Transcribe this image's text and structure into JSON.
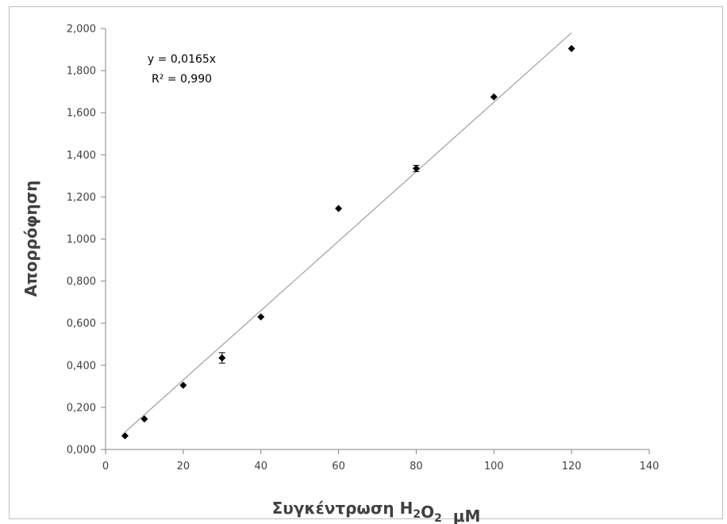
{
  "chart_data": {
    "type": "scatter",
    "xlabel": "Συγκέντρωση H2O2  μM",
    "ylabel": "Απορρόφηση",
    "xlim": [
      0,
      140
    ],
    "ylim": [
      0,
      2
    ],
    "x_ticks": [
      "0",
      "20",
      "40",
      "60",
      "80",
      "100",
      "120",
      "140"
    ],
    "y_ticks": [
      "0,000",
      "0,200",
      "0,400",
      "0,600",
      "0,800",
      "1,000",
      "1,200",
      "1,400",
      "1,600",
      "1,800",
      "2,000"
    ],
    "grid": false,
    "series": [
      {
        "x": [
          5,
          10,
          20,
          30,
          40,
          60,
          80,
          100,
          120
        ],
        "y": [
          0.065,
          0.145,
          0.305,
          0.435,
          0.63,
          1.145,
          1.335,
          1.675,
          1.905
        ],
        "error": [
          0,
          0,
          0,
          0.025,
          0,
          0,
          0.015,
          0,
          0
        ],
        "marker": "diamond",
        "color": "#000000"
      }
    ],
    "trendline": {
      "slope": 0.0165,
      "x_range": [
        5,
        120
      ],
      "color": "#a6a6a6",
      "equation": "y = 0,0165x",
      "r2": "R² = 0,990"
    }
  }
}
